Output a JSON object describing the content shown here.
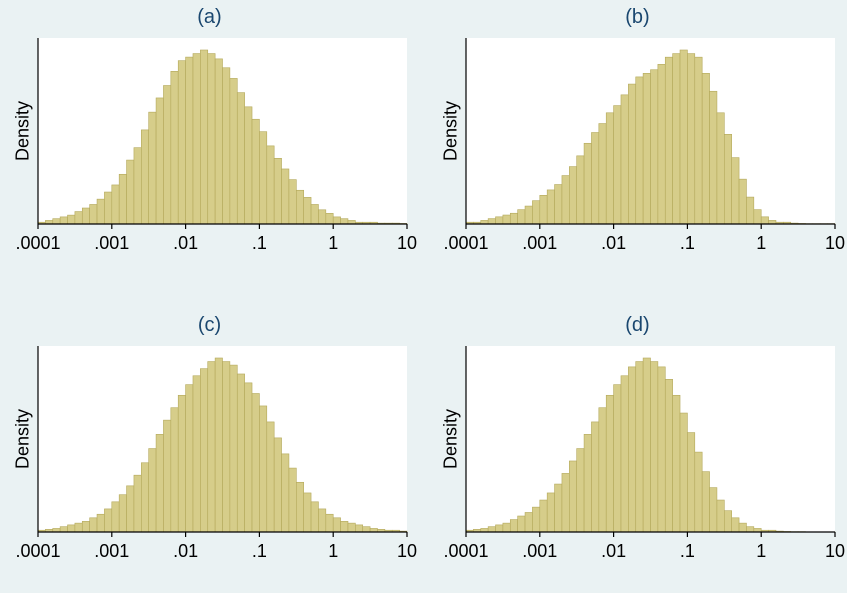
{
  "colors": {
    "background": "#eaf2f3",
    "plot_background": "#ffffff",
    "bar_fill": "#d6cd8a",
    "bar_stroke": "#b3a85a",
    "title_color": "#1a476f"
  },
  "chart_data": [
    {
      "type": "bar",
      "title": "(a)",
      "ylabel": "Density",
      "x_scale": "log",
      "xlim": [
        0.0001,
        10
      ],
      "x_ticks": [
        0.0001,
        0.001,
        0.01,
        0.1,
        1,
        10
      ],
      "x_tick_labels": [
        ".0001",
        ".001",
        ".01",
        ".1",
        "1",
        "10"
      ],
      "bin_start": 0.0001,
      "bins_per_decade": 10,
      "values": [
        0.01,
        0.02,
        0.03,
        0.04,
        0.05,
        0.07,
        0.09,
        0.11,
        0.14,
        0.18,
        0.22,
        0.28,
        0.36,
        0.43,
        0.53,
        0.63,
        0.71,
        0.78,
        0.86,
        0.92,
        0.94,
        0.96,
        0.98,
        0.96,
        0.93,
        0.88,
        0.82,
        0.74,
        0.66,
        0.59,
        0.52,
        0.44,
        0.37,
        0.31,
        0.25,
        0.19,
        0.15,
        0.11,
        0.08,
        0.06,
        0.04,
        0.03,
        0.02,
        0.01,
        0.01,
        0.01,
        0.005,
        0.005,
        0.005,
        0.003
      ]
    },
    {
      "type": "bar",
      "title": "(b)",
      "ylabel": "Density",
      "x_scale": "log",
      "xlim": [
        0.0001,
        10
      ],
      "x_ticks": [
        0.0001,
        0.001,
        0.01,
        0.1,
        1,
        10
      ],
      "x_tick_labels": [
        ".0001",
        ".001",
        ".01",
        ".1",
        "1",
        "10"
      ],
      "bin_start": 0.0001,
      "bins_per_decade": 10,
      "values": [
        0.01,
        0.01,
        0.02,
        0.03,
        0.04,
        0.05,
        0.06,
        0.08,
        0.1,
        0.13,
        0.16,
        0.19,
        0.22,
        0.27,
        0.32,
        0.38,
        0.45,
        0.51,
        0.56,
        0.62,
        0.66,
        0.72,
        0.78,
        0.82,
        0.84,
        0.86,
        0.89,
        0.93,
        0.95,
        0.97,
        0.95,
        0.93,
        0.84,
        0.74,
        0.62,
        0.5,
        0.37,
        0.25,
        0.15,
        0.08,
        0.04,
        0.02,
        0.01,
        0.01,
        0.005,
        0.003,
        0.002,
        0.002,
        0.002,
        0.002
      ]
    },
    {
      "type": "bar",
      "title": "(c)",
      "ylabel": "Density",
      "x_scale": "log",
      "xlim": [
        0.0001,
        10
      ],
      "x_ticks": [
        0.0001,
        0.001,
        0.01,
        0.1,
        1,
        10
      ],
      "x_tick_labels": [
        ".0001",
        ".001",
        ".01",
        ".1",
        "1",
        "10"
      ],
      "bin_start": 0.0001,
      "bins_per_decade": 10,
      "values": [
        0.01,
        0.015,
        0.02,
        0.03,
        0.04,
        0.05,
        0.06,
        0.08,
        0.1,
        0.13,
        0.17,
        0.21,
        0.26,
        0.32,
        0.39,
        0.47,
        0.55,
        0.63,
        0.7,
        0.77,
        0.83,
        0.88,
        0.92,
        0.96,
        0.98,
        0.96,
        0.94,
        0.89,
        0.84,
        0.78,
        0.71,
        0.62,
        0.53,
        0.44,
        0.36,
        0.28,
        0.22,
        0.17,
        0.13,
        0.1,
        0.08,
        0.06,
        0.05,
        0.04,
        0.03,
        0.02,
        0.015,
        0.01,
        0.01,
        0.005
      ]
    },
    {
      "type": "bar",
      "title": "(d)",
      "ylabel": "Density",
      "x_scale": "log",
      "xlim": [
        0.0001,
        10
      ],
      "x_ticks": [
        0.0001,
        0.001,
        0.01,
        0.1,
        1,
        10
      ],
      "x_tick_labels": [
        ".0001",
        ".001",
        ".01",
        ".1",
        "1",
        "10"
      ],
      "bin_start": 0.0001,
      "bins_per_decade": 10,
      "values": [
        0.01,
        0.015,
        0.02,
        0.03,
        0.04,
        0.05,
        0.07,
        0.09,
        0.11,
        0.14,
        0.18,
        0.22,
        0.27,
        0.33,
        0.4,
        0.47,
        0.55,
        0.62,
        0.7,
        0.77,
        0.83,
        0.88,
        0.93,
        0.96,
        0.98,
        0.96,
        0.93,
        0.86,
        0.77,
        0.67,
        0.56,
        0.45,
        0.34,
        0.25,
        0.18,
        0.12,
        0.08,
        0.05,
        0.03,
        0.02,
        0.01,
        0.01,
        0.005,
        0.003,
        0.002,
        0.002,
        0.001,
        0.001,
        0.001,
        0.001
      ]
    }
  ]
}
